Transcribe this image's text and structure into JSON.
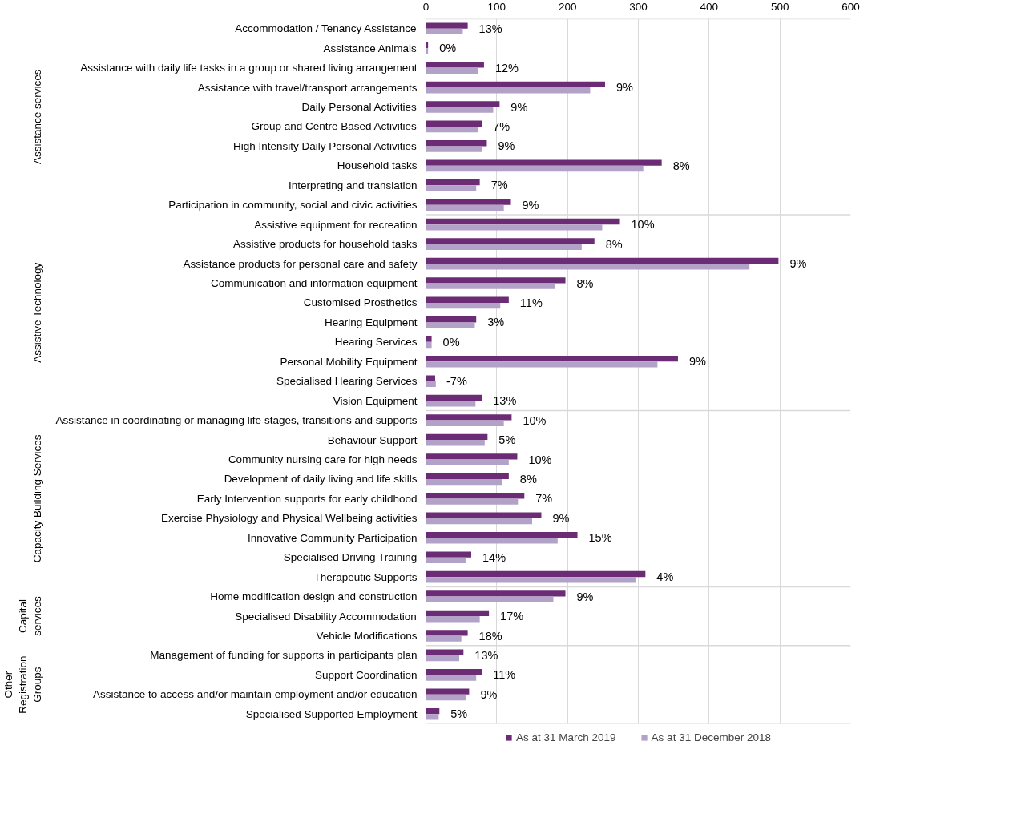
{
  "chart_data": {
    "type": "bar",
    "orientation": "horizontal",
    "categories": [
      "Accommodation / Tenancy Assistance",
      "Assistance Animals",
      "Assistance with daily life tasks in a group or shared living arrangement",
      "Assistance with travel/transport arrangements",
      "Daily Personal Activities",
      "Group and Centre Based Activities",
      "High Intensity Daily Personal Activities",
      "Household tasks",
      "Interpreting and translation",
      "Participation in community, social and civic activities",
      "Assistive equipment for recreation",
      "Assistive products for household tasks",
      "Assistance products for personal care and safety",
      "Communication and information equipment",
      "Customised Prosthetics",
      "Hearing Equipment",
      "Hearing Services",
      "Personal Mobility Equipment",
      "Specialised Hearing Services",
      "Vision Equipment",
      "Assistance in coordinating or managing life stages, transitions and supports",
      "Behaviour Support",
      "Community nursing care for high needs",
      "Development of daily living and life skills",
      "Early Intervention supports for early childhood",
      "Exercise Physiology and Physical Wellbeing activities",
      "Innovative Community Participation",
      "Specialised Driving Training",
      "Therapeutic Supports",
      "Home modification design and construction",
      "Specialised Disability Accommodation",
      "Vehicle Modifications",
      "Management of funding for supports in participants plan",
      "Support Coordination",
      "Assistance to access and/or maintain employment and/or education",
      "Specialised Supported Employment"
    ],
    "series": [
      {
        "name": "As at 31 March 2019",
        "color": "#6b2c75",
        "values": [
          59,
          3,
          82,
          253,
          104,
          79,
          86,
          333,
          76,
          120,
          274,
          238,
          498,
          197,
          117,
          71,
          8,
          356,
          13,
          79,
          121,
          87,
          129,
          117,
          139,
          163,
          214,
          64,
          310,
          197,
          89,
          59,
          53,
          79,
          61,
          19
        ]
      },
      {
        "name": "As at 31 December 2018",
        "color": "#b3a2c8",
        "values": [
          52,
          3,
          73,
          232,
          95,
          74,
          79,
          307,
          71,
          110,
          249,
          220,
          457,
          182,
          105,
          69,
          8,
          327,
          14,
          70,
          110,
          83,
          117,
          107,
          130,
          150,
          186,
          56,
          296,
          180,
          76,
          50,
          47,
          71,
          56,
          18
        ]
      }
    ],
    "xlim": [
      0,
      600
    ],
    "xticks": [
      0,
      100,
      200,
      300,
      400,
      500,
      600
    ],
    "grid": "x",
    "legend": "bottom",
    "annotations": [
      "Assistance services",
      "Assistive Technology",
      "Capacity Building Services",
      "Capital\nservices",
      "Other\nRegistration\nGroups",
      {
        "text": "13%",
        "x": 59,
        "y": "Accommodation / Tenancy Assistance"
      },
      {
        "text": "0%",
        "x": 3,
        "y": "Assistance Animals"
      },
      {
        "text": "12%",
        "x": 82,
        "y": "Assistance with daily life tasks in a group or shared living arrangement"
      },
      {
        "text": "9%",
        "x": 253,
        "y": "Assistance with travel/transport arrangements"
      },
      {
        "text": "9%",
        "x": 104,
        "y": "Daily Personal Activities"
      },
      {
        "text": "7%",
        "x": 79,
        "y": "Group and Centre Based Activities"
      },
      {
        "text": "9%",
        "x": 86,
        "y": "High Intensity Daily Personal Activities"
      },
      {
        "text": "8%",
        "x": 333,
        "y": "Household tasks"
      },
      {
        "text": "7%",
        "x": 76,
        "y": "Interpreting and translation"
      },
      {
        "text": "9%",
        "x": 120,
        "y": "Participation in community, social and civic activities"
      },
      {
        "text": "10%",
        "x": 274,
        "y": "Assistive equipment for recreation"
      },
      {
        "text": "8%",
        "x": 238,
        "y": "Assistive products for household tasks"
      },
      {
        "text": "9%",
        "x": 498,
        "y": "Assistance products for personal care and safety"
      },
      {
        "text": "8%",
        "x": 197,
        "y": "Communication and information equipment"
      },
      {
        "text": "11%",
        "x": 117,
        "y": "Customised Prosthetics"
      },
      {
        "text": "3%",
        "x": 71,
        "y": "Hearing Equipment"
      },
      {
        "text": "0%",
        "x": 8,
        "y": "Hearing Services"
      },
      {
        "text": "9%",
        "x": 356,
        "y": "Personal Mobility Equipment"
      },
      {
        "text": "-7%",
        "x": 13,
        "y": "Specialised Hearing Services"
      },
      {
        "text": "13%",
        "x": 79,
        "y": "Vision Equipment"
      },
      {
        "text": "10%",
        "x": 121,
        "y": "Assistance in coordinating or managing life stages, transitions and supports"
      },
      {
        "text": "5%",
        "x": 87,
        "y": "Behaviour Support"
      },
      {
        "text": "10%",
        "x": 129,
        "y": "Community nursing care for high needs"
      },
      {
        "text": "8%",
        "x": 117,
        "y": "Development of daily living and life skills"
      },
      {
        "text": "7%",
        "x": 139,
        "y": "Early Intervention supports for early childhood"
      },
      {
        "text": "9%",
        "x": 163,
        "y": "Exercise Physiology and Physical Wellbeing activities"
      },
      {
        "text": "15%",
        "x": 214,
        "y": "Innovative Community Participation"
      },
      {
        "text": "14%",
        "x": 64,
        "y": "Specialised Driving Training"
      },
      {
        "text": "4%",
        "x": 310,
        "y": "Therapeutic Supports"
      },
      {
        "text": "9%",
        "x": 197,
        "y": "Home modification design and construction"
      },
      {
        "text": "17%",
        "x": 89,
        "y": "Specialised Disability Accommodation"
      },
      {
        "text": "18%",
        "x": 59,
        "y": "Vehicle Modifications"
      },
      {
        "text": "13%",
        "x": 53,
        "y": "Management of funding for supports in participants plan"
      },
      {
        "text": "11%",
        "x": 79,
        "y": "Support Coordination"
      },
      {
        "text": "9%",
        "x": 61,
        "y": "Assistance to access and/or maintain employment and/or education"
      },
      {
        "text": "5%",
        "x": 19,
        "y": "Specialised Supported Employment"
      }
    ]
  }
}
